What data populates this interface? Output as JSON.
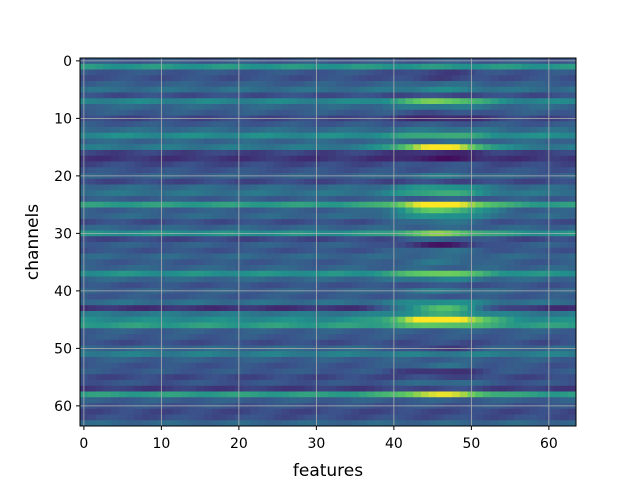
{
  "chart_data": {
    "type": "heatmap",
    "title": "",
    "xlabel": "features",
    "ylabel": "channels",
    "x_ticks": [
      "0",
      "10",
      "20",
      "30",
      "40",
      "50",
      "60"
    ],
    "y_ticks": [
      "0",
      "10",
      "20",
      "30",
      "40",
      "50",
      "60"
    ],
    "xlim": [
      -0.5,
      63.5
    ],
    "ylim": [
      63.5,
      -0.5
    ],
    "rows": 64,
    "cols": 64,
    "grid": true,
    "colormap": "viridis",
    "value_range": [
      0,
      1
    ],
    "row_base": [
      0.27,
      0.52,
      0.27,
      0.25,
      0.3,
      0.36,
      0.24,
      0.45,
      0.33,
      0.29,
      0.22,
      0.28,
      0.35,
      0.48,
      0.33,
      0.4,
      0.2,
      0.16,
      0.22,
      0.26,
      0.3,
      0.22,
      0.34,
      0.38,
      0.29,
      0.55,
      0.3,
      0.33,
      0.24,
      0.32,
      0.5,
      0.22,
      0.3,
      0.26,
      0.33,
      0.28,
      0.32,
      0.5,
      0.33,
      0.26,
      0.3,
      0.28,
      0.36,
      0.15,
      0.4,
      0.48,
      0.55,
      0.3,
      0.28,
      0.24,
      0.33,
      0.42,
      0.3,
      0.26,
      0.28,
      0.22,
      0.26,
      0.18,
      0.55,
      0.3,
      0.26,
      0.22,
      0.24,
      0.33
    ],
    "peak_column": 46,
    "peak_width": 4,
    "row_peak": [
      0.0,
      0.0,
      -0.08,
      -0.05,
      0.05,
      0.1,
      -0.02,
      0.35,
      0.1,
      -0.05,
      -0.12,
      0.0,
      0.05,
      0.15,
      0.0,
      0.65,
      -0.08,
      -0.1,
      0.05,
      0.0,
      0.1,
      0.0,
      0.2,
      0.25,
      0.0,
      0.55,
      0.45,
      0.2,
      0.15,
      0.0,
      0.3,
      0.1,
      -0.22,
      0.1,
      0.0,
      0.1,
      0.0,
      0.3,
      0.1,
      0.0,
      0.1,
      0.0,
      0.15,
      0.55,
      0.2,
      0.7,
      0.2,
      0.0,
      0.0,
      0.0,
      -0.15,
      0.0,
      0.0,
      0.1,
      -0.15,
      0.0,
      0.1,
      0.05,
      0.4,
      0.0,
      0.0,
      0.0,
      0.0,
      0.0
    ]
  }
}
